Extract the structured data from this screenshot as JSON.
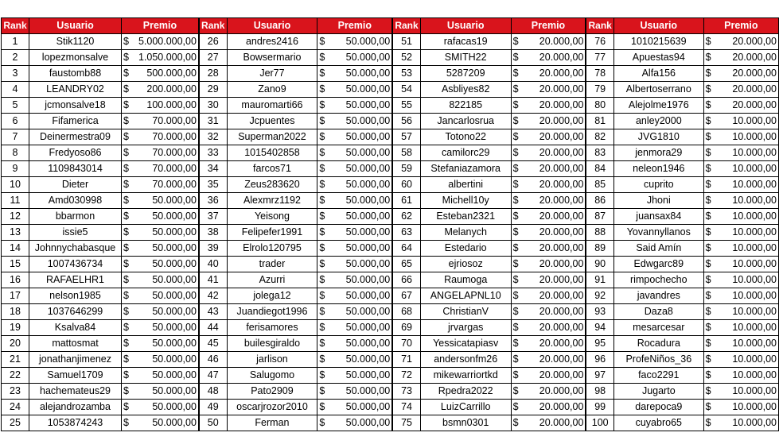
{
  "headers": {
    "rank": "Rank",
    "user": "Usuario",
    "prize": "Premio"
  },
  "currency_symbol": "$",
  "colors": {
    "header_bg": "#d9141c",
    "header_text": "#ffffff"
  },
  "rows": [
    [
      [
        "1",
        "Stik1120",
        "5.000.000,00"
      ],
      [
        "26",
        "andres2416",
        "50.000,00"
      ],
      [
        "51",
        "rafacas19",
        "20.000,00"
      ],
      [
        "76",
        "1010215639",
        "20.000,00"
      ]
    ],
    [
      [
        "2",
        "lopezmonsalve",
        "1.050.000,00"
      ],
      [
        "27",
        "Bowsermario",
        "50.000,00"
      ],
      [
        "52",
        "SMITH22",
        "20.000,00"
      ],
      [
        "77",
        "Apuestas94",
        "20.000,00"
      ]
    ],
    [
      [
        "3",
        "faustomb88",
        "500.000,00"
      ],
      [
        "28",
        "Jer77",
        "50.000,00"
      ],
      [
        "53",
        "5287209",
        "20.000,00"
      ],
      [
        "78",
        "Alfa156",
        "20.000,00"
      ]
    ],
    [
      [
        "4",
        "LEANDRY02",
        "200.000,00"
      ],
      [
        "29",
        "Zano9",
        "50.000,00"
      ],
      [
        "54",
        "Asbliyes82",
        "20.000,00"
      ],
      [
        "79",
        "Albertoserrano",
        "20.000,00"
      ]
    ],
    [
      [
        "5",
        "jcmonsalve18",
        "100.000,00"
      ],
      [
        "30",
        "mauromarti66",
        "50.000,00"
      ],
      [
        "55",
        "822185",
        "20.000,00"
      ],
      [
        "80",
        "Alejolme1976",
        "20.000,00"
      ]
    ],
    [
      [
        "6",
        "Fifamerica",
        "70.000,00"
      ],
      [
        "31",
        "Jcpuentes",
        "50.000,00"
      ],
      [
        "56",
        "Jancarlosrua",
        "20.000,00"
      ],
      [
        "81",
        "anley2000",
        "10.000,00"
      ]
    ],
    [
      [
        "7",
        "Deinermestra09",
        "70.000,00"
      ],
      [
        "32",
        "Superman2022",
        "50.000,00"
      ],
      [
        "57",
        "Totono22",
        "20.000,00"
      ],
      [
        "82",
        "JVG1810",
        "10.000,00"
      ]
    ],
    [
      [
        "8",
        "Fredyoso86",
        "70.000,00"
      ],
      [
        "33",
        "1015402858",
        "50.000,00"
      ],
      [
        "58",
        "camilorc29",
        "20.000,00"
      ],
      [
        "83",
        "jenmora29",
        "10.000,00"
      ]
    ],
    [
      [
        "9",
        "1109843014",
        "70.000,00"
      ],
      [
        "34",
        "farcos71",
        "50.000,00"
      ],
      [
        "59",
        "Stefaniazamora",
        "20.000,00"
      ],
      [
        "84",
        "neleon1946",
        "10.000,00"
      ]
    ],
    [
      [
        "10",
        "Dieter",
        "70.000,00"
      ],
      [
        "35",
        "Zeus283620",
        "50.000,00"
      ],
      [
        "60",
        "albertini",
        "20.000,00"
      ],
      [
        "85",
        "cuprito",
        "10.000,00"
      ]
    ],
    [
      [
        "11",
        "Amd030998",
        "50.000,00"
      ],
      [
        "36",
        "Alexmrz1192",
        "50.000,00"
      ],
      [
        "61",
        "Michell10y",
        "20.000,00"
      ],
      [
        "86",
        "Jhoni",
        "10.000,00"
      ]
    ],
    [
      [
        "12",
        "bbarmon",
        "50.000,00"
      ],
      [
        "37",
        "Yeisong",
        "50.000,00"
      ],
      [
        "62",
        "Esteban2321",
        "20.000,00"
      ],
      [
        "87",
        "juansax84",
        "10.000,00"
      ]
    ],
    [
      [
        "13",
        "issie5",
        "50.000,00"
      ],
      [
        "38",
        "Felipefer1991",
        "50.000,00"
      ],
      [
        "63",
        "Melanych",
        "20.000,00"
      ],
      [
        "88",
        "Yovannyllanos",
        "10.000,00"
      ]
    ],
    [
      [
        "14",
        "Johnnychabasque",
        "50.000,00"
      ],
      [
        "39",
        "Elrolo120795",
        "50.000,00"
      ],
      [
        "64",
        "Estedario",
        "20.000,00"
      ],
      [
        "89",
        "Said Amín",
        "10.000,00"
      ]
    ],
    [
      [
        "15",
        "1007436734",
        "50.000,00"
      ],
      [
        "40",
        "trader",
        "50.000,00"
      ],
      [
        "65",
        "ejriosoz",
        "20.000,00"
      ],
      [
        "90",
        "Edwgarc89",
        "10.000,00"
      ]
    ],
    [
      [
        "16",
        "RAFAELHR1",
        "50.000,00"
      ],
      [
        "41",
        "Azurri",
        "50.000,00"
      ],
      [
        "66",
        "Raumoga",
        "20.000,00"
      ],
      [
        "91",
        "rimpochecho",
        "10.000,00"
      ]
    ],
    [
      [
        "17",
        "nelson1985",
        "50.000,00"
      ],
      [
        "42",
        "jolega12",
        "50.000,00"
      ],
      [
        "67",
        "ANGELAPNL10",
        "20.000,00"
      ],
      [
        "92",
        "javandres",
        "10.000,00"
      ]
    ],
    [
      [
        "18",
        "1037646299",
        "50.000,00"
      ],
      [
        "43",
        "Juandiegot1996",
        "50.000,00"
      ],
      [
        "68",
        "ChristianV",
        "20.000,00"
      ],
      [
        "93",
        "Daza8",
        "10.000,00"
      ]
    ],
    [
      [
        "19",
        "Ksalva84",
        "50.000,00"
      ],
      [
        "44",
        "ferisamores",
        "50.000,00"
      ],
      [
        "69",
        "jrvargas",
        "20.000,00"
      ],
      [
        "94",
        "mesarcesar",
        "10.000,00"
      ]
    ],
    [
      [
        "20",
        "mattosmat",
        "50.000,00"
      ],
      [
        "45",
        "builesgiraldo",
        "50.000,00"
      ],
      [
        "70",
        "Yessicatapiasv",
        "20.000,00"
      ],
      [
        "95",
        "Rocadura",
        "10.000,00"
      ]
    ],
    [
      [
        "21",
        "jonathanjimenez",
        "50.000,00"
      ],
      [
        "46",
        "jarlison",
        "50.000,00"
      ],
      [
        "71",
        "andersonfm26",
        "20.000,00"
      ],
      [
        "96",
        "ProfeNiños_36",
        "10.000,00"
      ]
    ],
    [
      [
        "22",
        "Samuel1709",
        "50.000,00"
      ],
      [
        "47",
        "Salugomo",
        "50.000,00"
      ],
      [
        "72",
        "mikewarriortkd",
        "20.000,00"
      ],
      [
        "97",
        "faco2291",
        "10.000,00"
      ]
    ],
    [
      [
        "23",
        "hachemateus29",
        "50.000,00"
      ],
      [
        "48",
        "Pato2909",
        "50.000,00"
      ],
      [
        "73",
        "Rpedra2022",
        "20.000,00"
      ],
      [
        "98",
        "Jugarto",
        "10.000,00"
      ]
    ],
    [
      [
        "24",
        "alejandrozamba",
        "50.000,00"
      ],
      [
        "49",
        "oscarjrozor2010",
        "50.000,00"
      ],
      [
        "74",
        "LuizCarrillo",
        "20.000,00"
      ],
      [
        "99",
        "darepoca9",
        "10.000,00"
      ]
    ],
    [
      [
        "25",
        "1053874243",
        "50.000,00"
      ],
      [
        "50",
        "Ferman",
        "50.000,00"
      ],
      [
        "75",
        "bsmn0301",
        "20.000,00"
      ],
      [
        "100",
        "cuyabro65",
        "10.000,00"
      ]
    ]
  ]
}
